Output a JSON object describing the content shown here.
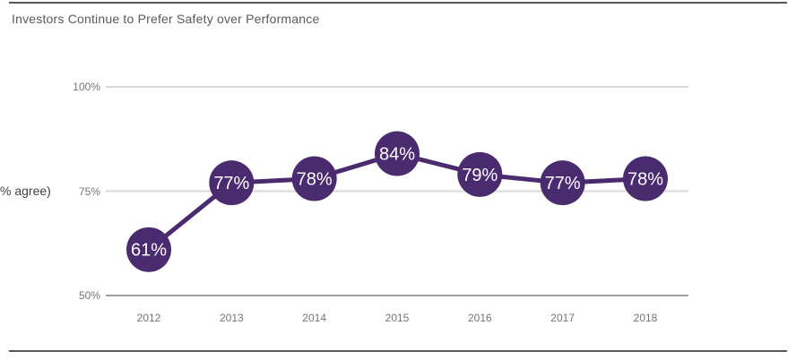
{
  "header": {
    "title": "Investors Continue to Prefer Safety over Performance"
  },
  "chart_data": {
    "type": "line",
    "title": "Investors Continue to Prefer Safety over Performance",
    "categories": [
      "2012",
      "2013",
      "2014",
      "2015",
      "2016",
      "2017",
      "2018"
    ],
    "values": [
      61,
      77,
      78,
      84,
      79,
      77,
      78
    ],
    "point_labels": [
      "61%",
      "77%",
      "78%",
      "84%",
      "79%",
      "77%",
      "78%"
    ],
    "ylabel": "% agree)",
    "y_ticks": [
      "100%",
      "75%",
      "50%"
    ],
    "y_tick_values": [
      100,
      75,
      50
    ],
    "ylim": [
      50,
      100
    ],
    "grid": "horizontal",
    "legend": "none",
    "colors": {
      "line": "#4a2b70",
      "marker": "#4a2b70",
      "marker_text": "#ffffff",
      "gridline": "#d9d9d9",
      "baseline": "#9e9e9e",
      "tick_text": "#757575",
      "title_text": "#58595b",
      "rule": "#58585a"
    }
  }
}
